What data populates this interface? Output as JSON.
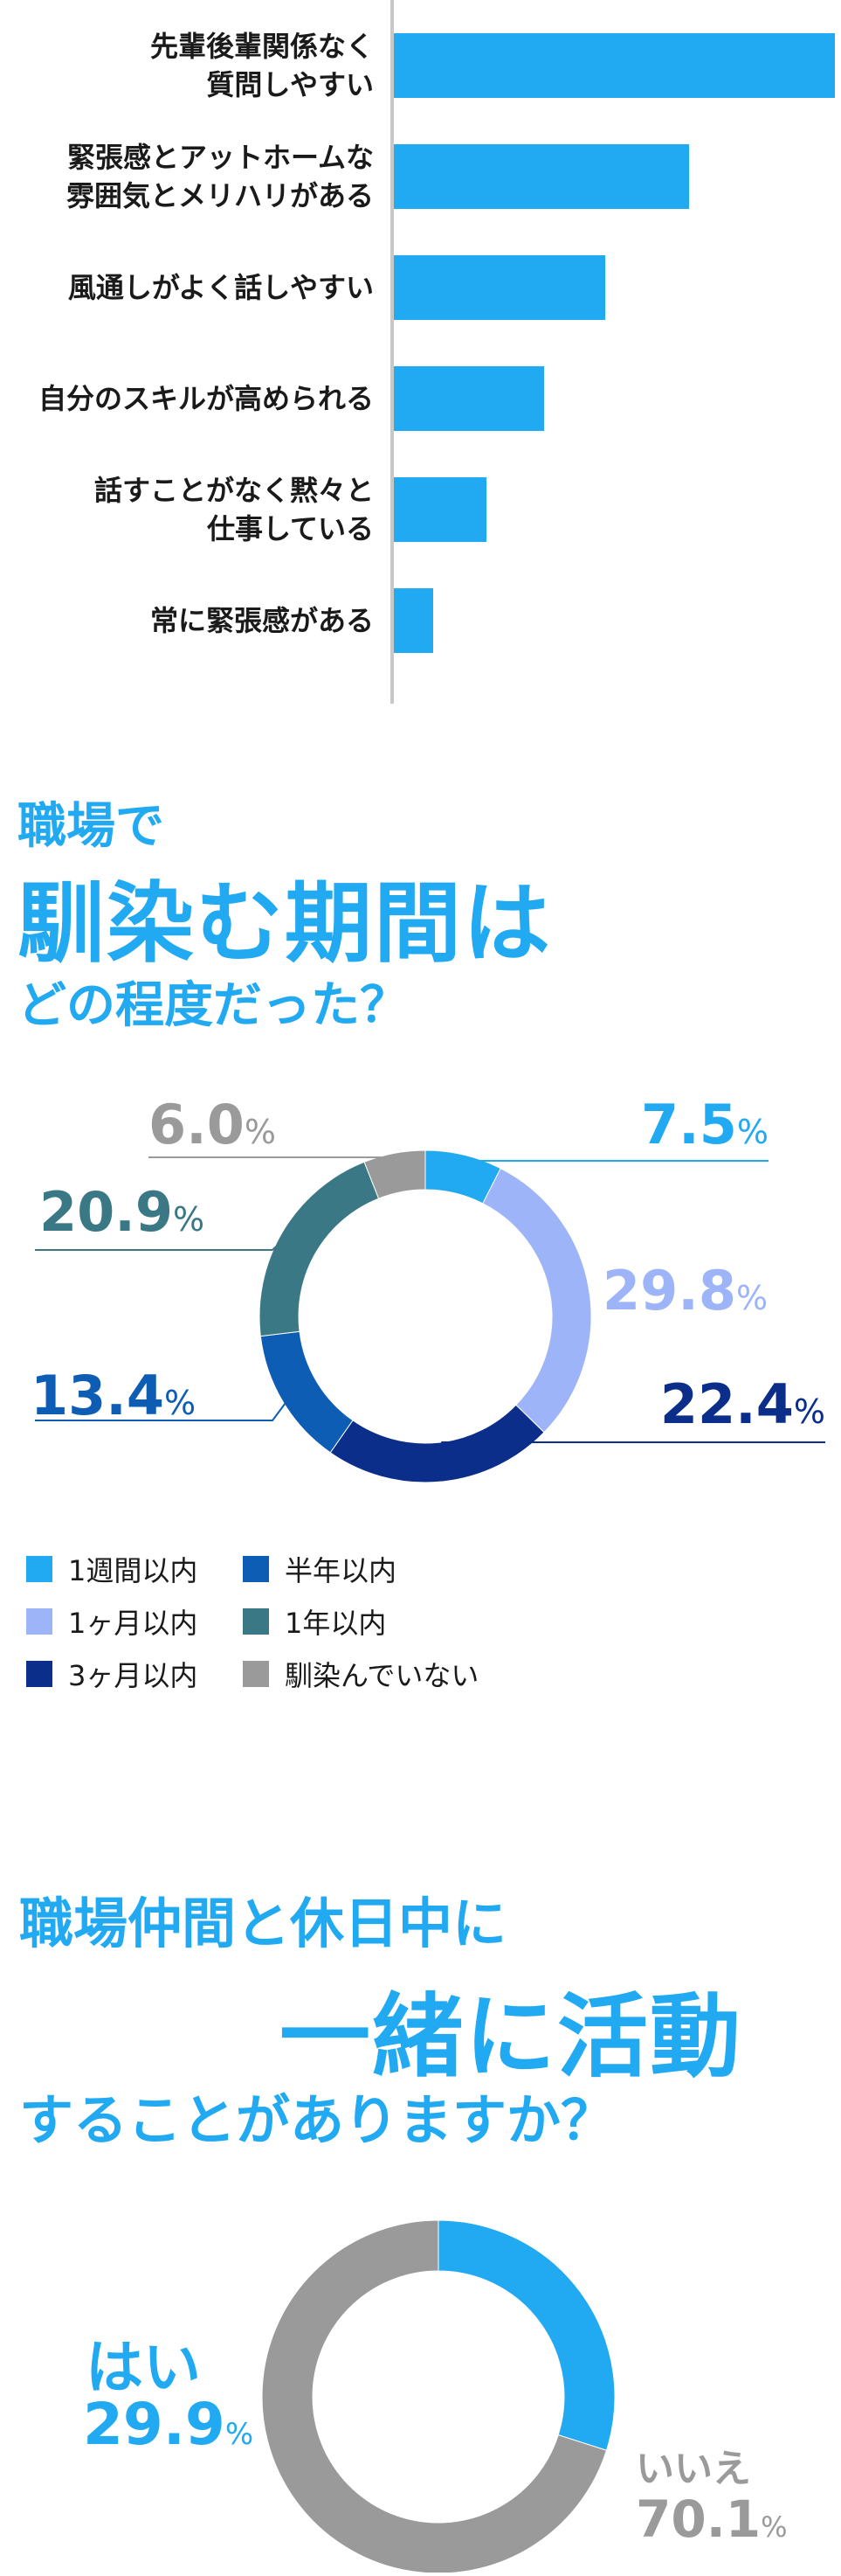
{
  "chart_data": [
    {
      "type": "bar",
      "orientation": "horizontal",
      "categories": [
        "先輩後輩関係なく\n質問しやすい",
        "緊張感とアットホームな\n雰囲気とメリハリがある",
        "風通しがよく話しやすい",
        "自分のスキルが高められる",
        "話すことがなく黙々と\n仕事している",
        "常に緊張感がある"
      ],
      "values": [
        100,
        67,
        48,
        34,
        21,
        9
      ],
      "color": "#21a9f2",
      "grid": false
    },
    {
      "type": "pie",
      "donut": true,
      "title": [
        "職場で",
        "馴染む期間は",
        "どの程度だった？"
      ],
      "categories": [
        "1週間以内",
        "1ヶ月以内",
        "3ヶ月以内",
        "半年以内",
        "1年以内",
        "馴染んでいない"
      ],
      "values": [
        7.5,
        29.8,
        22.4,
        13.4,
        20.9,
        6.0
      ],
      "value_labels": [
        "7.5",
        "29.8",
        "22.4",
        "13.4",
        "20.9",
        "6.0"
      ],
      "colors": [
        "#21a9f2",
        "#9db4f8",
        "#0b2e8a",
        "#0d5db5",
        "#3a7886",
        "#9a9a9a"
      ],
      "unit": "%",
      "legend_position": "bottom"
    },
    {
      "type": "pie",
      "donut": true,
      "title": [
        "職場仲間と休日中に",
        "一緒に活動",
        "することがありますか？"
      ],
      "categories": [
        "はい",
        "いいえ"
      ],
      "values": [
        29.9,
        70.1
      ],
      "value_labels": [
        "29.9",
        "70.1"
      ],
      "colors": [
        "#21a9f2",
        "#9a9a9a"
      ],
      "unit": "%"
    }
  ]
}
